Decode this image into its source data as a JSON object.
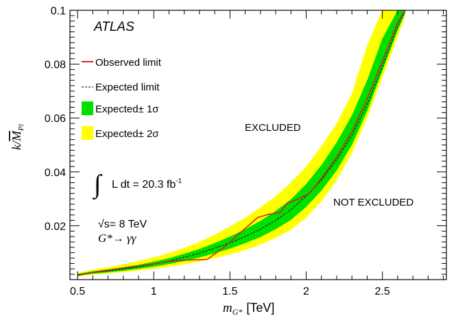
{
  "chart_data": {
    "type": "line",
    "experiment_label": "ATLAS",
    "xlabel_main": "m",
    "xlabel_sub": "G*",
    "xlabel_unit": "[TeV]",
    "ylabel_k": "k/",
    "ylabel_m": "M",
    "ylabel_sub": "Pl",
    "xlim": [
      0.45,
      2.92
    ],
    "ylim": [
      0.0,
      0.1
    ],
    "x_ticks": [
      0.5,
      1,
      1.5,
      2,
      2.5
    ],
    "x_tick_labels": [
      "0.5",
      "1",
      "1.5",
      "2",
      "2.5"
    ],
    "y_ticks": [
      0.02,
      0.04,
      0.06,
      0.08,
      0.1
    ],
    "y_tick_labels": [
      "0.02",
      "0.04",
      "0.06",
      "0.08",
      "0.1"
    ],
    "legend": {
      "observed": "Observed limit",
      "expected": "Expected limit",
      "one_sigma": "Expected± 1σ",
      "two_sigma": "Expected± 2σ",
      "placement": "top-left"
    },
    "annotations": {
      "excluded": "EXCLUDED",
      "not_excluded": "NOT EXCLUDED",
      "lumi_integral": "∫",
      "lumi_text": "L dt = 20.3 fb",
      "lumi_exp": "-1",
      "energy": "√s= 8 TeV",
      "process": "G*→ γγ"
    },
    "colors": {
      "observed": "#d62020",
      "expected": "#000000",
      "one_sigma": "#00e000",
      "two_sigma": "#ffff00"
    },
    "series": [
      {
        "name": "Observed limit",
        "x": [
          0.5,
          0.6,
          0.7,
          0.8,
          0.9,
          1.0,
          1.1,
          1.2,
          1.35,
          1.45,
          1.55,
          1.68,
          1.75,
          1.83,
          1.88,
          1.95,
          2.02,
          2.1,
          2.2,
          2.3,
          2.4,
          2.5,
          2.6,
          2.65
        ],
        "y": [
          0.0015,
          0.0027,
          0.0035,
          0.0043,
          0.005,
          0.0058,
          0.0068,
          0.0072,
          0.0075,
          0.0115,
          0.0165,
          0.023,
          0.0242,
          0.025,
          0.0285,
          0.03,
          0.032,
          0.0375,
          0.0455,
          0.055,
          0.067,
          0.081,
          0.0955,
          0.1
        ]
      },
      {
        "name": "Expected limit",
        "x": [
          0.5,
          0.6,
          0.7,
          0.8,
          0.9,
          1.0,
          1.1,
          1.2,
          1.3,
          1.4,
          1.5,
          1.6,
          1.7,
          1.8,
          1.9,
          2.0,
          2.1,
          2.2,
          2.3,
          2.4,
          2.5,
          2.6,
          2.65
        ],
        "y": [
          0.0018,
          0.0026,
          0.0032,
          0.0039,
          0.0047,
          0.0057,
          0.0069,
          0.0083,
          0.0098,
          0.0117,
          0.0137,
          0.016,
          0.0187,
          0.022,
          0.026,
          0.031,
          0.037,
          0.0445,
          0.0535,
          0.065,
          0.079,
          0.094,
          0.1
        ]
      }
    ],
    "bands": [
      {
        "name": "Expected± 2σ",
        "x": [
          0.5,
          0.6,
          0.7,
          0.8,
          0.9,
          1.0,
          1.1,
          1.2,
          1.3,
          1.4,
          1.5,
          1.6,
          1.7,
          1.8,
          1.9,
          2.0,
          2.1,
          2.2,
          2.3,
          2.4,
          2.5,
          2.6,
          2.65
        ],
        "lower": [
          0.0012,
          0.0018,
          0.0023,
          0.0028,
          0.0034,
          0.004,
          0.0048,
          0.0057,
          0.0067,
          0.008,
          0.0094,
          0.011,
          0.013,
          0.0155,
          0.0185,
          0.023,
          0.029,
          0.037,
          0.047,
          0.06,
          0.075,
          0.09,
          0.098
        ],
        "upper": [
          0.0025,
          0.0037,
          0.0046,
          0.0057,
          0.0069,
          0.0083,
          0.0099,
          0.0118,
          0.014,
          0.0167,
          0.0197,
          0.023,
          0.0268,
          0.031,
          0.036,
          0.042,
          0.0495,
          0.058,
          0.069,
          0.087,
          0.1,
          0.1,
          0.1
        ]
      },
      {
        "name": "Expected± 1σ",
        "x": [
          0.5,
          0.6,
          0.7,
          0.8,
          0.9,
          1.0,
          1.1,
          1.2,
          1.3,
          1.4,
          1.5,
          1.6,
          1.7,
          1.8,
          1.9,
          2.0,
          2.1,
          2.2,
          2.3,
          2.4,
          2.5,
          2.6,
          2.65
        ],
        "lower": [
          0.0015,
          0.0022,
          0.0027,
          0.0033,
          0.004,
          0.0048,
          0.0058,
          0.0069,
          0.0082,
          0.0098,
          0.0115,
          0.0135,
          0.0158,
          0.0187,
          0.0222,
          0.027,
          0.033,
          0.0405,
          0.05,
          0.0625,
          0.0775,
          0.0925,
          0.099
        ],
        "upper": [
          0.0021,
          0.0031,
          0.0038,
          0.0046,
          0.0055,
          0.0067,
          0.008,
          0.0096,
          0.0114,
          0.0136,
          0.016,
          0.0187,
          0.0218,
          0.0255,
          0.0298,
          0.0355,
          0.0425,
          0.051,
          0.061,
          0.074,
          0.0895,
          0.1,
          0.1
        ]
      }
    ]
  }
}
